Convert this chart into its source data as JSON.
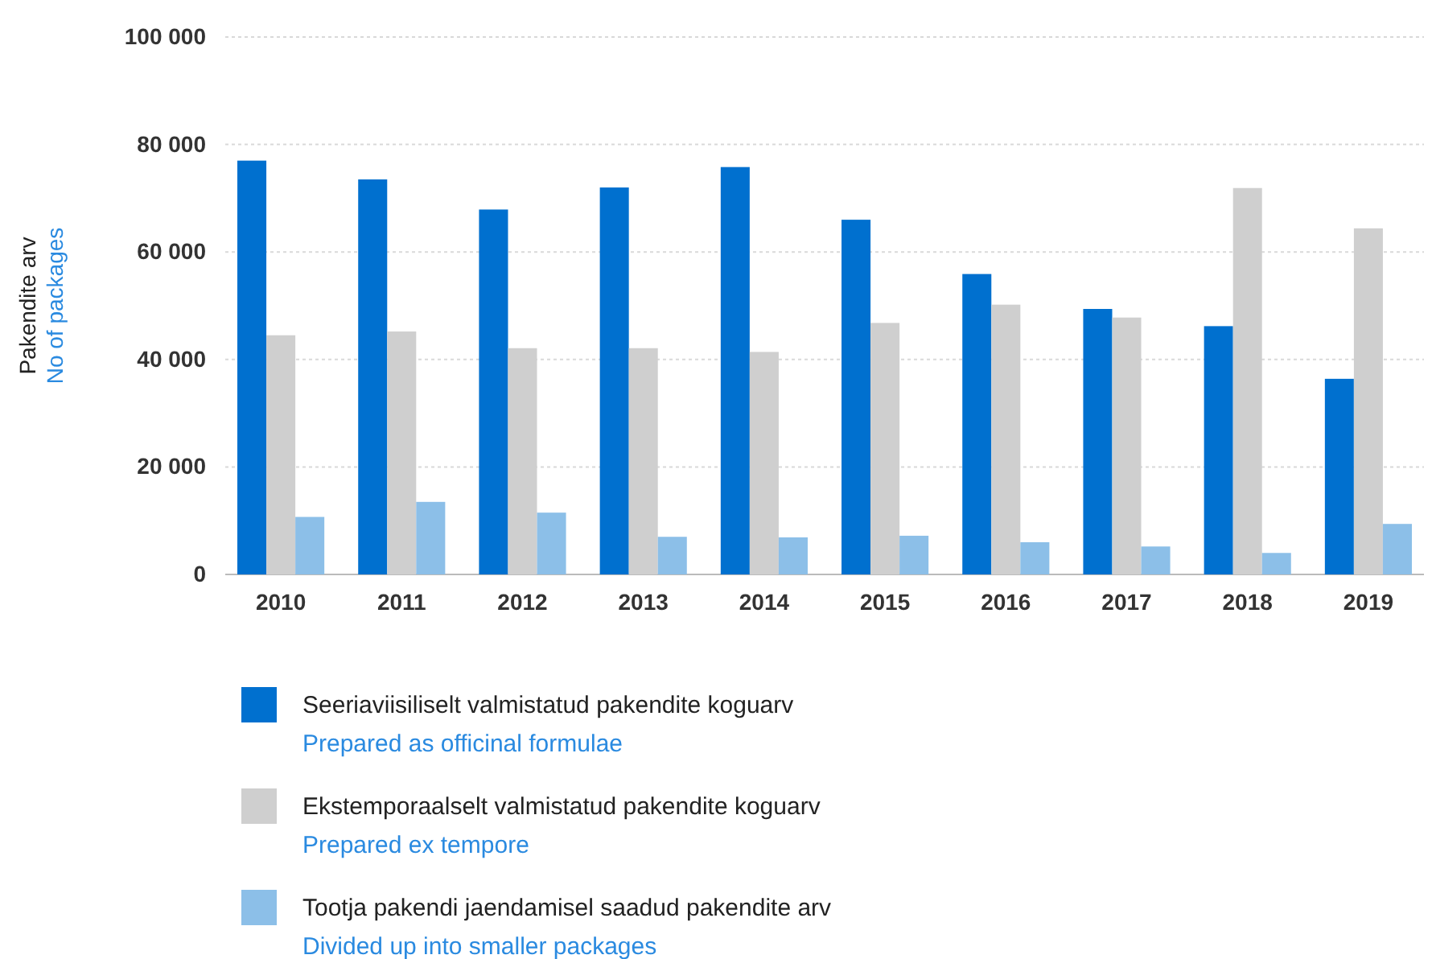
{
  "chart_data": {
    "type": "bar",
    "ylabel": "Pakendite arv\nNo of packages",
    "categories": [
      "2010",
      "2011",
      "2012",
      "2013",
      "2014",
      "2015",
      "2016",
      "2017",
      "2018",
      "2019"
    ],
    "series": [
      {
        "name": "Seeriaviisiliselt valmistatud pakendite koguarv\nPrepared as officinal formulae",
        "color": "#0070cf",
        "values": [
          77000,
          73500,
          67900,
          72000,
          75800,
          66000,
          55900,
          49400,
          46200,
          36400
        ]
      },
      {
        "name": "Ekstemporaalselt valmistatud pakendite koguarv\nPrepared ex tempore",
        "color": "#cfcfcf",
        "values": [
          44500,
          45200,
          42100,
          42100,
          41400,
          46800,
          50200,
          47800,
          71900,
          64400
        ]
      },
      {
        "name": "Tootja pakendi jaendamisel saadud pakendite arv\nDivided up into smaller packages",
        "color": "#8cbfe8",
        "values": [
          10700,
          13500,
          11500,
          7000,
          6900,
          7200,
          6000,
          5200,
          4000,
          9400
        ]
      }
    ],
    "ylim": [
      0,
      100000
    ],
    "yticks": [
      0,
      {
        "value": 20000,
        "label": "20 000"
      },
      {
        "value": 40000,
        "label": "40 000"
      },
      {
        "value": 60000,
        "label": "60 000"
      },
      {
        "value": 80000,
        "label": "80 000"
      },
      {
        "value": 100000,
        "label": "100 000"
      }
    ],
    "grid": "y",
    "legend": "bottom"
  }
}
